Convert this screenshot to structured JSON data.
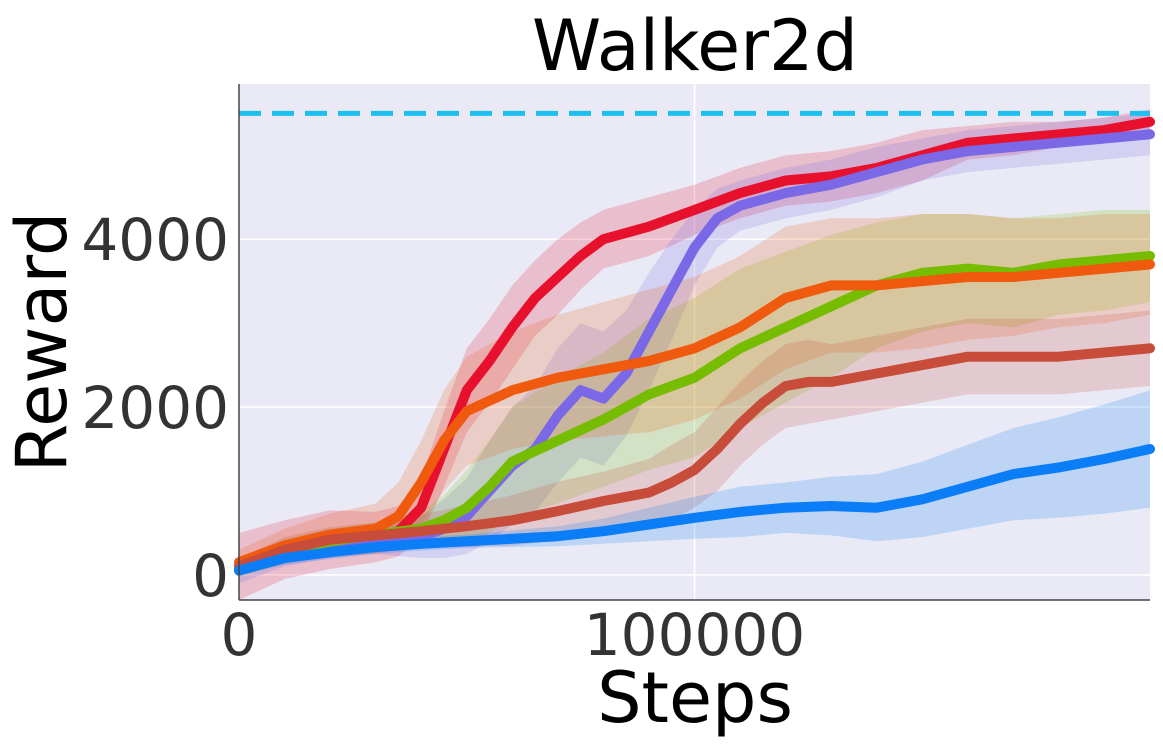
{
  "chart_data": {
    "type": "line",
    "title": "Walker2d",
    "xlabel": "Steps",
    "ylabel": "Reward",
    "xlim": [
      0,
      200000
    ],
    "ylim": [
      -300,
      5850
    ],
    "xticks": [
      0,
      100000
    ],
    "xtick_labels": [
      "0",
      "100000"
    ],
    "yticks": [
      0,
      2000,
      4000
    ],
    "ytick_labels": [
      "0",
      "2000",
      "4000"
    ],
    "grid": true,
    "background": "#eaeaf6",
    "reference_line": {
      "y": 5500,
      "color": "#1ec0f2",
      "style": "dashed"
    },
    "series": [
      {
        "color": "#e8112d",
        "x": [
          0,
          10000,
          20000,
          30000,
          35000,
          40000,
          45000,
          50000,
          55000,
          60000,
          65000,
          70000,
          75000,
          80000,
          90000,
          100000,
          110000,
          120000,
          130000,
          140000,
          150000,
          160000,
          170000,
          180000,
          190000,
          200000
        ],
        "y": [
          100,
          300,
          420,
          450,
          520,
          800,
          1500,
          2200,
          2550,
          2950,
          3300,
          3550,
          3800,
          4000,
          4150,
          4350,
          4550,
          4700,
          4750,
          4850,
          5000,
          5150,
          5200,
          5250,
          5300,
          5400
        ],
        "band": [
          400,
          350,
          350,
          300,
          300,
          350,
          450,
          500,
          500,
          500,
          450,
          450,
          400,
          350,
          350,
          300,
          300,
          300,
          300,
          300,
          300,
          200,
          200,
          150,
          150,
          150
        ]
      },
      {
        "color": "#7a68e6",
        "x": [
          0,
          10000,
          20000,
          30000,
          40000,
          45000,
          50000,
          55000,
          60000,
          65000,
          70000,
          75000,
          80000,
          85000,
          90000,
          95000,
          100000,
          105000,
          110000,
          120000,
          130000,
          140000,
          150000,
          160000,
          170000,
          180000,
          190000,
          200000
        ],
        "y": [
          50,
          250,
          350,
          400,
          450,
          550,
          700,
          1000,
          1300,
          1500,
          1900,
          2200,
          2100,
          2400,
          2900,
          3400,
          3900,
          4250,
          4400,
          4550,
          4650,
          4800,
          4950,
          5050,
          5100,
          5150,
          5200,
          5250
        ],
        "band": [
          150,
          150,
          150,
          150,
          250,
          350,
          450,
          600,
          700,
          750,
          800,
          800,
          800,
          750,
          700,
          600,
          450,
          350,
          300,
          300,
          300,
          300,
          250,
          250,
          250,
          250,
          250,
          250
        ]
      },
      {
        "color": "#76bc00",
        "x": [
          0,
          10000,
          20000,
          30000,
          40000,
          45000,
          50000,
          55000,
          60000,
          70000,
          80000,
          90000,
          100000,
          110000,
          120000,
          130000,
          140000,
          150000,
          160000,
          170000,
          180000,
          190000,
          200000
        ],
        "y": [
          80,
          280,
          400,
          480,
          550,
          650,
          800,
          1050,
          1350,
          1600,
          1850,
          2150,
          2350,
          2700,
          2950,
          3200,
          3450,
          3600,
          3650,
          3600,
          3700,
          3750,
          3800
        ],
        "band": [
          100,
          150,
          150,
          150,
          200,
          300,
          450,
          550,
          650,
          750,
          800,
          900,
          950,
          950,
          900,
          850,
          750,
          700,
          650,
          650,
          600,
          600,
          550
        ]
      },
      {
        "color": "#ef5a0e",
        "x": [
          0,
          10000,
          20000,
          30000,
          35000,
          40000,
          45000,
          50000,
          60000,
          70000,
          80000,
          90000,
          100000,
          110000,
          120000,
          130000,
          140000,
          150000,
          160000,
          170000,
          180000,
          190000,
          200000
        ],
        "y": [
          150,
          350,
          480,
          550,
          700,
          1100,
          1600,
          1950,
          2200,
          2350,
          2450,
          2550,
          2700,
          2950,
          3300,
          3450,
          3450,
          3500,
          3550,
          3550,
          3600,
          3650,
          3700
        ],
        "band": [
          150,
          200,
          250,
          300,
          400,
          500,
          600,
          650,
          700,
          750,
          800,
          850,
          850,
          850,
          850,
          800,
          800,
          800,
          750,
          700,
          650,
          650,
          600
        ]
      },
      {
        "color": "#c84c3a",
        "x": [
          0,
          10000,
          20000,
          30000,
          40000,
          50000,
          60000,
          70000,
          80000,
          90000,
          95000,
          100000,
          105000,
          110000,
          115000,
          120000,
          125000,
          130000,
          140000,
          150000,
          160000,
          170000,
          180000,
          190000,
          200000
        ],
        "y": [
          100,
          300,
          420,
          470,
          520,
          580,
          650,
          760,
          880,
          980,
          1100,
          1250,
          1500,
          1800,
          2050,
          2250,
          2300,
          2300,
          2400,
          2500,
          2600,
          2600,
          2600,
          2650,
          2700
        ],
        "band": [
          100,
          150,
          150,
          150,
          200,
          250,
          300,
          350,
          350,
          400,
          450,
          450,
          500,
          500,
          500,
          500,
          500,
          450,
          450,
          450,
          450,
          450,
          450,
          450,
          450
        ]
      },
      {
        "color": "#0b7df7",
        "x": [
          0,
          10000,
          20000,
          30000,
          40000,
          50000,
          60000,
          70000,
          80000,
          90000,
          100000,
          110000,
          120000,
          130000,
          140000,
          150000,
          160000,
          170000,
          180000,
          190000,
          200000
        ],
        "y": [
          50,
          200,
          270,
          330,
          370,
          400,
          430,
          460,
          520,
          600,
          680,
          750,
          800,
          820,
          800,
          900,
          1050,
          1200,
          1280,
          1380,
          1500
        ],
        "band": [
          50,
          80,
          80,
          80,
          80,
          80,
          100,
          120,
          150,
          200,
          250,
          300,
          300,
          350,
          400,
          450,
          500,
          550,
          600,
          650,
          700
        ]
      }
    ]
  }
}
